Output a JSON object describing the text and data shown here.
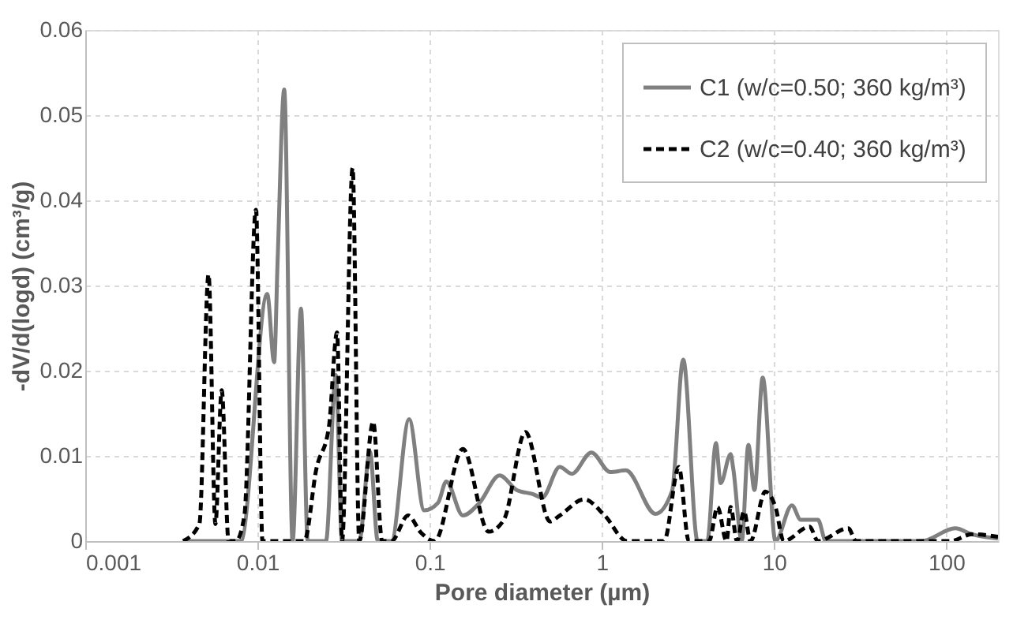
{
  "chart_data": {
    "type": "line",
    "xlabel": "Pore diameter (µm)",
    "ylabel": "-dV/d(logd) (cm³/g)",
    "log": "x",
    "xlim": [
      0.001,
      200
    ],
    "xticks": [
      0.001,
      0.01,
      0.1,
      1,
      10,
      100
    ],
    "ylim": [
      0,
      0.06
    ],
    "yticks": [
      0,
      0.01,
      0.02,
      0.03,
      0.04,
      0.05,
      0.06
    ],
    "grid": true,
    "legend": "top right",
    "series": [
      {
        "name": "C1 (w/c=0.50; 360 kg/m³)",
        "color": "#808080",
        "line_style": "solid",
        "x": [
          0.0037,
          0.008,
          0.0114,
          0.0125,
          0.0131,
          0.0143,
          0.016,
          0.0179,
          0.0196,
          0.025,
          0.0285,
          0.031,
          0.039,
          0.045,
          0.05,
          0.06,
          0.076,
          0.093,
          0.112,
          0.125,
          0.156,
          0.195,
          0.255,
          0.32,
          0.4,
          0.45,
          0.57,
          0.67,
          0.87,
          1.12,
          1.38,
          2.05,
          2.56,
          2.97,
          3.6,
          4.1,
          4.6,
          4.9,
          5.6,
          5.8,
          6.5,
          7.1,
          7.7,
          8.6,
          10.2,
          12.7,
          14.3,
          18,
          20,
          72,
          113,
          141,
          200
        ],
        "values": [
          0,
          0,
          0.029,
          0.021,
          0.033,
          0.053,
          0,
          0.0273,
          0,
          0,
          0.0195,
          0,
          0,
          0.0105,
          0,
          0,
          0.0143,
          0.0036,
          0.0045,
          0.007,
          0.003,
          0.0045,
          0.0077,
          0.006,
          0.0055,
          0.0051,
          0.0087,
          0.0079,
          0.0104,
          0.0081,
          0.0083,
          0.0032,
          0.0059,
          0.0213,
          0,
          0,
          0.0115,
          0.0068,
          0.0102,
          0.0085,
          0,
          0.0113,
          0.006,
          0.0192,
          0,
          0.0042,
          0.0025,
          0.0025,
          0,
          0,
          0.0015,
          0.0008,
          0.0003
        ]
      },
      {
        "name": "C2 (w/c=0.40; 360 kg/m³)",
        "color": "#000000",
        "line_style": "dashed",
        "x": [
          0.0037,
          0.0046,
          0.0052,
          0.0057,
          0.0062,
          0.0068,
          0.0075,
          0.0084,
          0.0098,
          0.0107,
          0.0187,
          0.022,
          0.026,
          0.029,
          0.031,
          0.0357,
          0.039,
          0.047,
          0.053,
          0.06,
          0.075,
          0.089,
          0.107,
          0.156,
          0.22,
          0.27,
          0.36,
          0.5,
          0.57,
          0.79,
          1.04,
          1.4,
          2.3,
          2.8,
          3.2,
          4.2,
          4.7,
          5.3,
          5.6,
          6.1,
          6.7,
          7.3,
          8.9,
          10.2,
          11.4,
          16.1,
          18,
          27,
          30,
          106,
          141,
          200
        ],
        "values": [
          0,
          0.002,
          0.0313,
          0.002,
          0.0177,
          0,
          0,
          0.003,
          0.0389,
          0,
          0,
          0.0085,
          0.0134,
          0.0245,
          0,
          0.0438,
          0,
          0.014,
          0,
          0,
          0.003,
          0.001,
          0,
          0.0108,
          0.0011,
          0.0025,
          0.0128,
          0.0023,
          0.003,
          0.0049,
          0.003,
          0,
          0,
          0.0087,
          0,
          0,
          0.004,
          0,
          0.004,
          0,
          0.0035,
          0,
          0.0058,
          0.004,
          0,
          0.0017,
          0,
          0.0015,
          0,
          0,
          0.0008,
          0.0005
        ]
      }
    ]
  }
}
